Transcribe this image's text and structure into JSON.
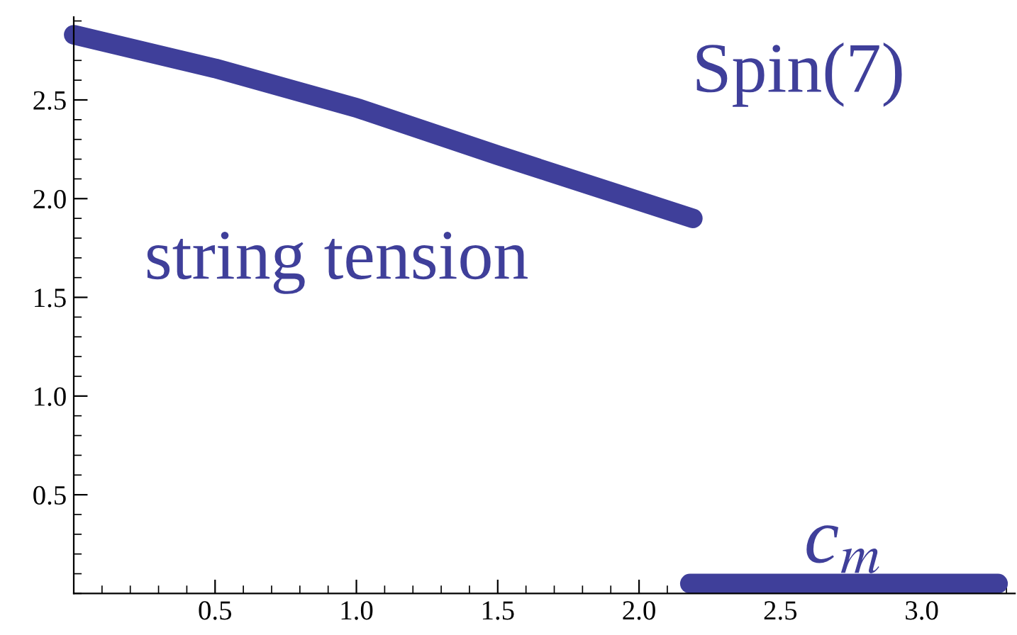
{
  "chart_data": {
    "type": "line",
    "title": "Spin(7)",
    "series": [
      {
        "name": "string tension",
        "color": "#3f3f9a",
        "x": [
          0,
          0.5,
          1.0,
          1.5,
          2.19
        ],
        "values": [
          2.83,
          2.66,
          2.46,
          2.22,
          1.9
        ]
      },
      {
        "name": "c$_{m}$",
        "color": "#3f3f9a",
        "x": [
          2.18,
          3.27
        ],
        "values": [
          0.05,
          0.05
        ]
      }
    ],
    "xlim": [
      0,
      3.33
    ],
    "ylim": [
      0,
      2.92
    ],
    "xticks": [
      0.5,
      {
        "value": 1,
        "label": "1.0"
      },
      1.5,
      {
        "value": 2,
        "label": "2.0"
      },
      2.5,
      {
        "value": 3,
        "label": "3.0"
      }
    ],
    "yticks": [
      0.5,
      {
        "value": 1,
        "label": "1.0"
      },
      1.5,
      {
        "value": 2,
        "label": "2.0"
      },
      2.5
    ],
    "grid": false,
    "legend": false,
    "line_style": "solid"
  }
}
